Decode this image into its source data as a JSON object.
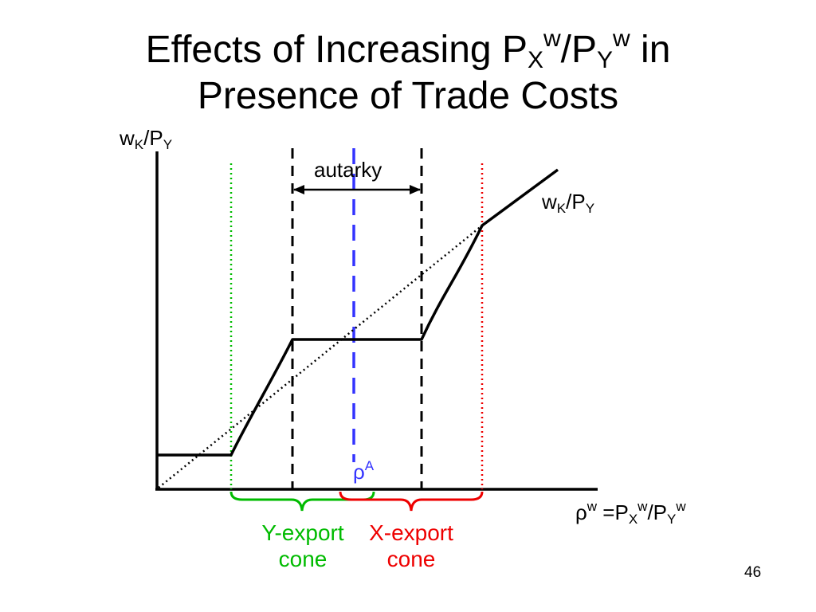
{
  "slide": {
    "title_line1_parts": [
      "Effects of Increasing P",
      "X",
      "w",
      "/P",
      "Y",
      "w",
      " in"
    ],
    "title_line2": "Presence of Trade Costs",
    "page_number": "46"
  },
  "diagram": {
    "y_axis_label": {
      "base": "w",
      "sub1": "K",
      "mid": "/P",
      "sub2": "Y"
    },
    "curve_label": {
      "base": "w",
      "sub1": "K",
      "mid": "/P",
      "sub2": "Y"
    },
    "autarky_label": "autarky",
    "rho_a_label": {
      "base": "ρ",
      "sup": "A"
    },
    "x_axis_label": {
      "p1": "ρ",
      "sup1": "w",
      "p2": " =P",
      "sub1": "X",
      "sup2": "w",
      "p3": "/P",
      "sub2": "Y",
      "sup3": "w"
    },
    "y_cone_label": {
      "line1": "Y-export",
      "line2": "cone"
    },
    "x_cone_label": {
      "line1": "X-export",
      "line2": "cone"
    },
    "colors": {
      "axes": "#000000",
      "y_cone": "#00bb00",
      "x_cone": "#ee0000",
      "rho_a": "#3333ff"
    }
  }
}
